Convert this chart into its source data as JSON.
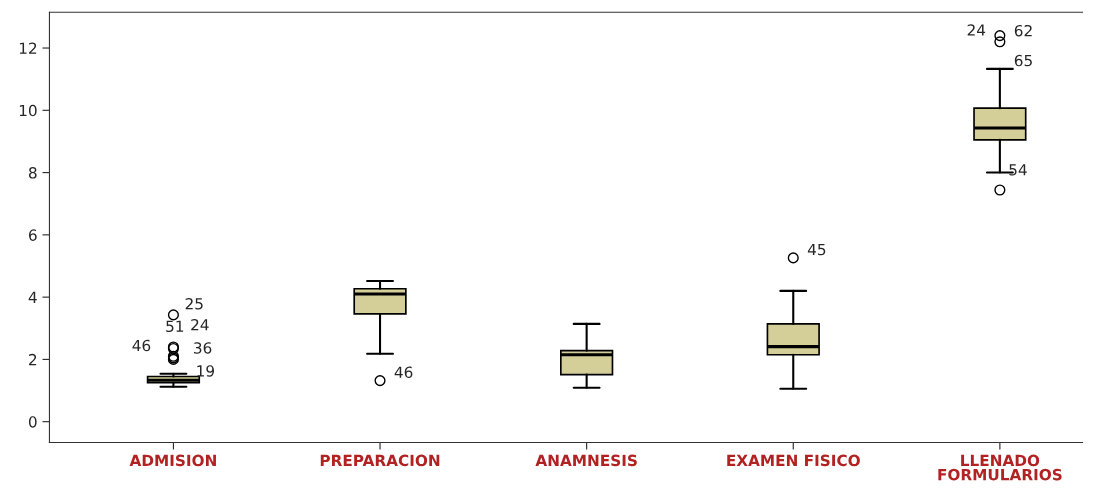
{
  "chart_data": {
    "type": "box",
    "categories": [
      "ADMISION",
      "PREPARACION",
      "ANAMNESIS",
      "EXAMEN FISICO",
      "LLENADO\nFORMULARIOS"
    ],
    "boxes": [
      {
        "low": 1.12,
        "q1": 1.25,
        "median": 1.33,
        "q3": 1.45,
        "high": 1.54,
        "outliers": [
          2.0,
          2.05,
          2.1,
          2.35,
          2.4,
          3.43
        ]
      },
      {
        "low": 2.18,
        "q1": 3.46,
        "median": 4.1,
        "q3": 4.27,
        "high": 4.52,
        "outliers": [
          1.32
        ]
      },
      {
        "low": 1.09,
        "q1": 1.51,
        "median": 2.15,
        "q3": 2.28,
        "high": 3.14
      },
      {
        "low": 1.06,
        "q1": 2.15,
        "median": 2.41,
        "q3": 3.14,
        "high": 4.2,
        "outliers": [
          5.26
        ]
      },
      {
        "low": 8.0,
        "q1": 9.05,
        "median": 9.43,
        "q3": 10.07,
        "high": 11.33,
        "outliers": [
          7.44,
          12.2,
          12.4
        ]
      }
    ],
    "color": "#d4cf98",
    "grid": false,
    "ylim": [
      -0.67,
      13.15
    ],
    "yticks": [
      0,
      2,
      4,
      6,
      8,
      10,
      12
    ],
    "annotations": [
      "25",
      "24",
      "51",
      "46",
      "36",
      "19",
      "46",
      "45",
      "24",
      "62",
      "65",
      "54"
    ]
  }
}
